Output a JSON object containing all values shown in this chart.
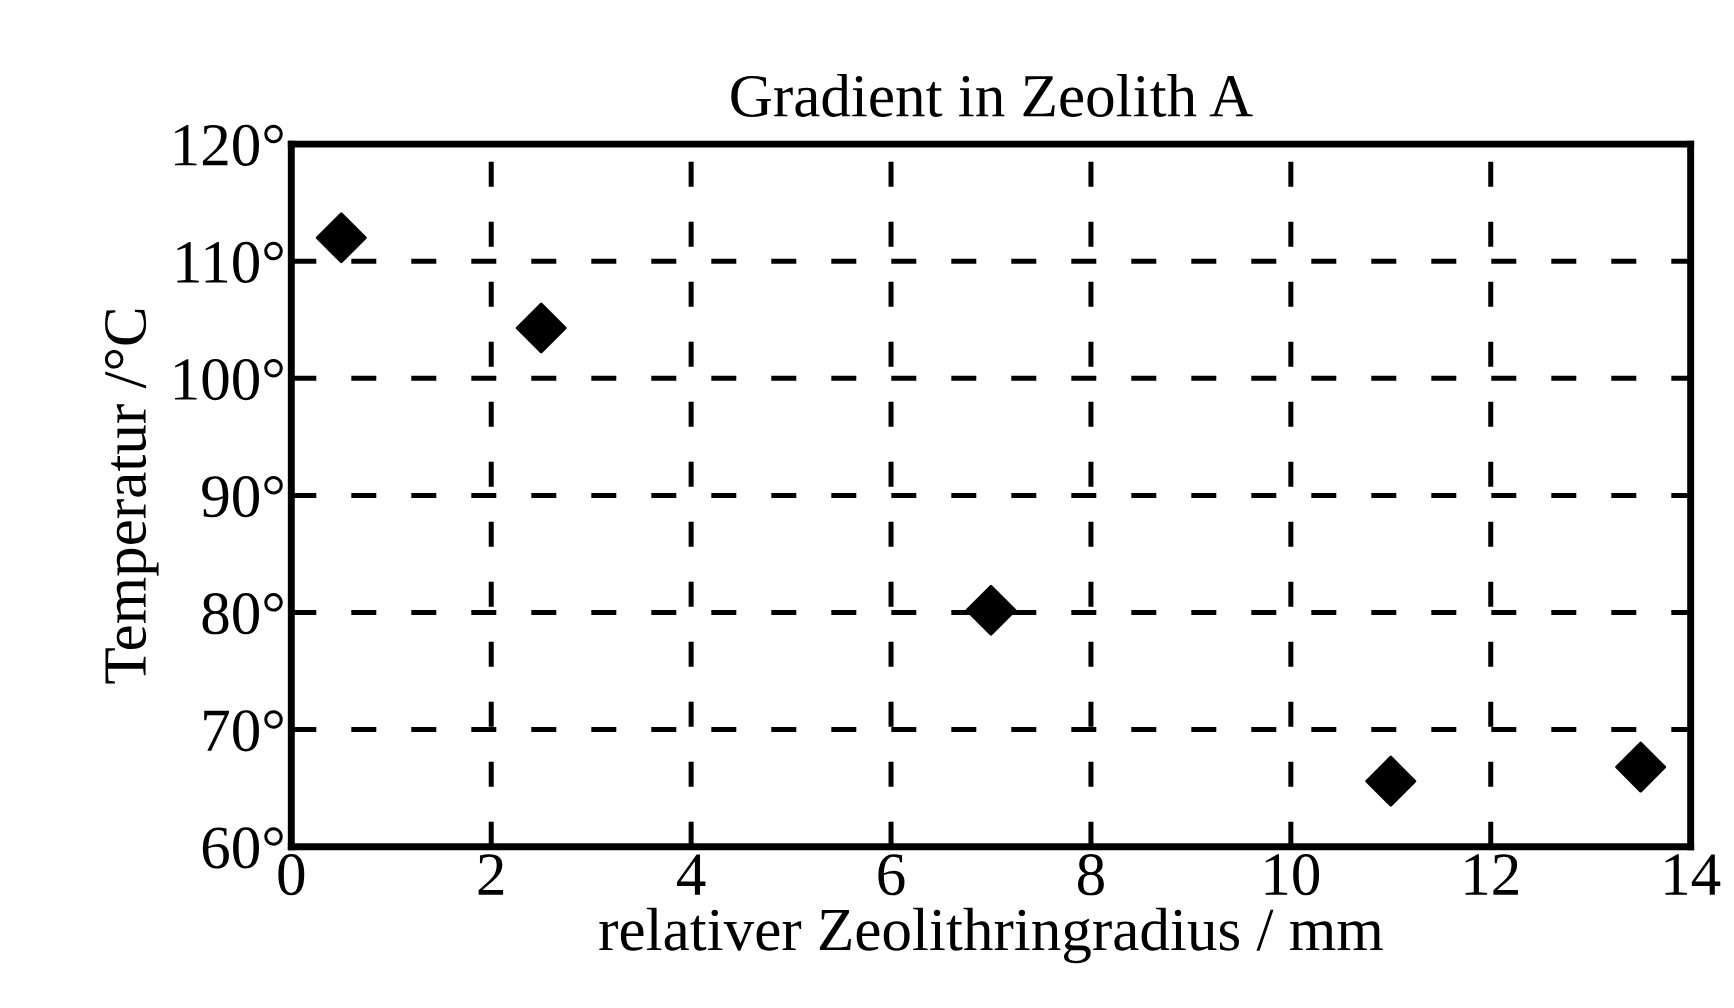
{
  "chart_data": {
    "type": "scatter",
    "title": "Gradient in Zeolith A",
    "xlabel": "relativer Zeolithringradius / mm",
    "ylabel": "Temperatur /°C",
    "x": [
      0.5,
      2.5,
      7,
      11,
      13.5
    ],
    "series": [
      {
        "color": "#000000",
        "values": [
          112,
          104.3,
          80.2,
          65.6,
          66.8
        ]
      }
    ],
    "marker": "diamond",
    "grid": true,
    "xlim": [
      0,
      14
    ],
    "xticks": [
      0,
      2,
      4,
      6,
      8,
      10,
      12,
      14
    ],
    "ylim": [
      60,
      120
    ],
    "yticks": [
      {
        "value": 60,
        "label": "60°"
      },
      {
        "value": 70,
        "label": "70°"
      },
      {
        "value": 80,
        "label": "80°"
      },
      {
        "value": 90,
        "label": "90°"
      },
      {
        "value": 100,
        "label": "100°"
      },
      {
        "value": 110,
        "label": "110°"
      },
      {
        "value": 120,
        "label": "120°"
      }
    ]
  }
}
